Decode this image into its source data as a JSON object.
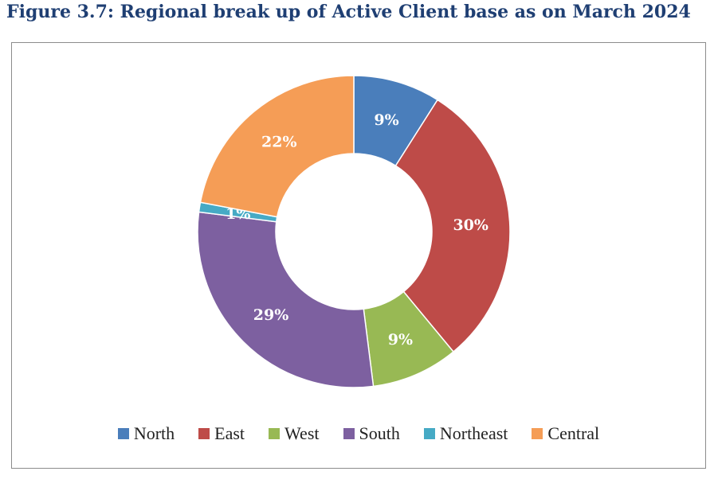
{
  "title": "Figure 3.7: Regional break up of Active Client base as on March 2024",
  "chart_data": {
    "type": "pie",
    "subtype": "donut",
    "categories": [
      "North",
      "East",
      "West",
      "South",
      "Northeast",
      "Central"
    ],
    "values": [
      9,
      30,
      9,
      29,
      1,
      22
    ],
    "data_labels": [
      "9%",
      "30%",
      "9%",
      "29%",
      "1%",
      "22%"
    ],
    "colors": [
      "#4a7ebb",
      "#be4b48",
      "#98b954",
      "#7d60a0",
      "#46aac5",
      "#f59d56"
    ],
    "legend_position": "bottom",
    "start_angle_deg": 0,
    "direction": "clockwise"
  }
}
